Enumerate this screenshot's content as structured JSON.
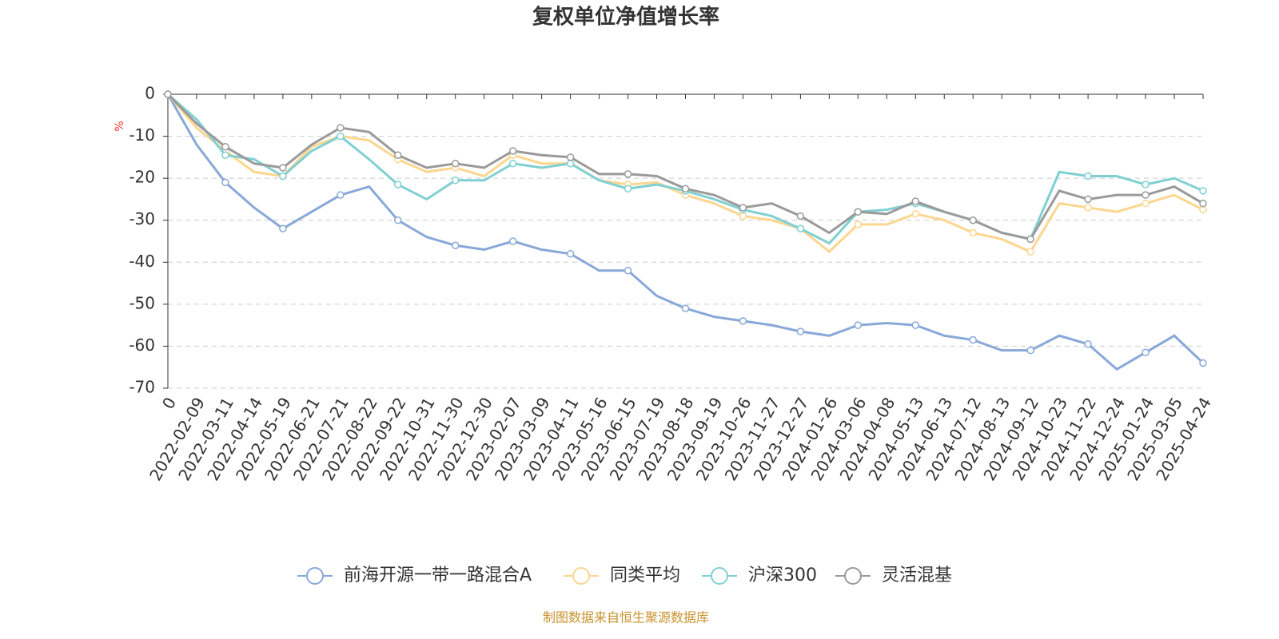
{
  "chart_data": {
    "type": "line",
    "title": "复权单位净值增长率",
    "y_label": "%",
    "source": "制图数据来自恒生聚源数据库",
    "categories": [
      "0",
      "2022-02-09",
      "2022-03-11",
      "2022-04-14",
      "2022-05-19",
      "2022-06-21",
      "2022-07-21",
      "2022-08-22",
      "2022-09-22",
      "2022-10-31",
      "2022-11-30",
      "2022-12-30",
      "2023-02-07",
      "2023-03-09",
      "2023-04-11",
      "2023-05-16",
      "2023-06-15",
      "2023-07-19",
      "2023-08-18",
      "2023-09-19",
      "2023-10-26",
      "2023-11-27",
      "2023-12-27",
      "2024-01-26",
      "2024-03-06",
      "2024-04-08",
      "2024-05-13",
      "2024-06-13",
      "2024-07-12",
      "2024-08-13",
      "2024-09-12",
      "2024-10-23",
      "2024-11-22",
      "2024-12-24",
      "2025-01-24",
      "2025-03-05",
      "2025-04-24"
    ],
    "series": [
      {
        "name": "前海开源一带一路混合A",
        "color": "#88a8d8",
        "values": [
          0,
          -12,
          -21,
          -27,
          -32,
          -28,
          -24,
          -22,
          -30,
          -34,
          -36,
          -37,
          -35,
          -37,
          -38,
          -42,
          -42,
          -48,
          -51,
          -53,
          -54,
          -55,
          -56.5,
          -57.5,
          -55,
          -54.5,
          -55,
          -57.5,
          -58.5,
          -61,
          -61,
          -57.5,
          -59.5,
          -65.5,
          -61.5,
          -57.5,
          -64
        ]
      },
      {
        "name": "同类平均",
        "color": "#fcd68f",
        "values": [
          0,
          -8,
          -13.5,
          -18.5,
          -19.5,
          -12.5,
          -10,
          -11,
          -15.5,
          -18.5,
          -17.5,
          -19.5,
          -14.5,
          -16.5,
          -16.5,
          -20.5,
          -21.5,
          -21,
          -24,
          -26,
          -29,
          -30,
          -32,
          -37.5,
          -31,
          -31,
          -28.5,
          -30,
          -33,
          -34.5,
          -37.5,
          -26,
          -27,
          -28,
          -26,
          -24,
          -27.5
        ]
      },
      {
        "name": "沪深300",
        "color": "#7fd0d2",
        "values": [
          0,
          -6,
          -14.5,
          -15.5,
          -19.5,
          -13.5,
          -10,
          -15.5,
          -21.5,
          -25,
          -20.5,
          -20.5,
          -16.5,
          -17.5,
          -16.5,
          -20.5,
          -22.5,
          -21.5,
          -23,
          -25,
          -27.5,
          -29,
          -32,
          -35.5,
          -28,
          -27.5,
          -26,
          -28,
          -30,
          -33,
          -34.5,
          -18.5,
          -19.5,
          -19.5,
          -21.5,
          -20,
          -23
        ]
      },
      {
        "name": "灵活混基",
        "color": "#9a9a9a",
        "values": [
          0,
          -7,
          -12.5,
          -16.5,
          -17.5,
          -12,
          -8,
          -9,
          -14.5,
          -17.5,
          -16.5,
          -17.5,
          -13.5,
          -14.5,
          -15,
          -19,
          -19,
          -19.5,
          -22.5,
          -24,
          -27,
          -26,
          -29,
          -33,
          -28,
          -28.5,
          -25.5,
          -28,
          -30,
          -33,
          -34.5,
          -23,
          -25,
          -24,
          -24,
          -22,
          -26
        ]
      }
    ],
    "ylim": [
      -70,
      0
    ],
    "yticks": [
      0,
      -10,
      -20,
      -30,
      -40,
      -50,
      -60,
      -70
    ],
    "grid": true
  }
}
